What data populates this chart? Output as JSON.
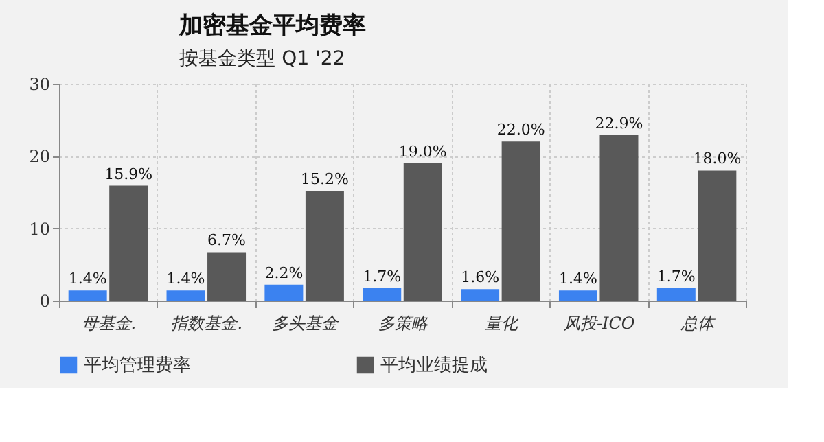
{
  "chart_data": {
    "type": "bar",
    "title": "加密基金平均费率",
    "subtitle": "按基金类型 Q1 '22",
    "categories": [
      "母基金.",
      "指数基金.",
      "多头基金",
      "多策略",
      "量化",
      "风投-ICO",
      "总体"
    ],
    "series": [
      {
        "name": "平均管理费率",
        "color": "#3b82f0",
        "values": [
          1.4,
          1.4,
          2.2,
          1.7,
          1.6,
          1.4,
          1.7
        ],
        "value_labels": [
          "1.4%",
          "1.4%",
          "2.2%",
          "1.7%",
          "1.6%",
          "1.4%",
          "1.7%"
        ]
      },
      {
        "name": "平均业绩提成",
        "color": "#595959",
        "values": [
          15.9,
          6.7,
          15.2,
          19.0,
          22.0,
          22.9,
          18.0
        ],
        "value_labels": [
          "15.9%",
          "6.7%",
          "15.2%",
          "19.0%",
          "22.0%",
          "22.9%",
          "18.0%"
        ]
      }
    ],
    "ylim": [
      0,
      30
    ],
    "yticks": [
      0,
      10,
      20,
      30
    ],
    "grid": true,
    "legend": "bottom"
  }
}
